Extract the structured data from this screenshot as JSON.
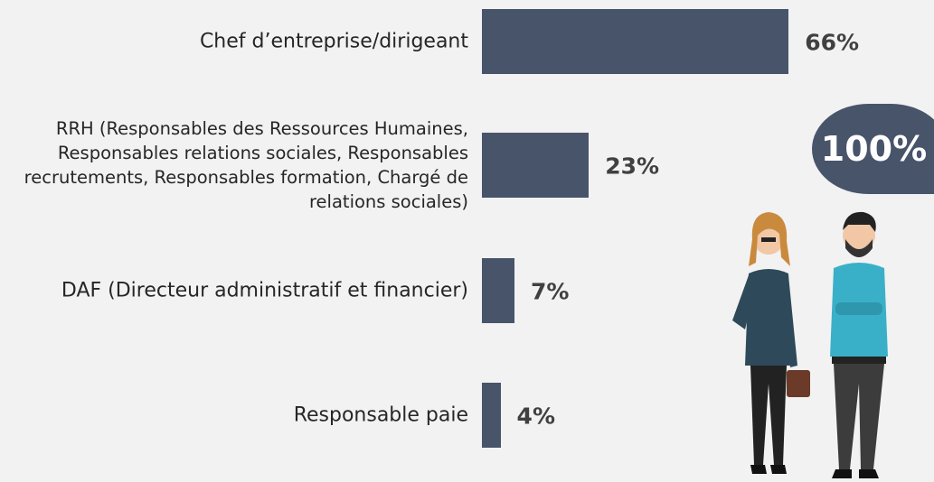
{
  "chart_data": {
    "type": "bar",
    "orientation": "horizontal",
    "color": "#48546a",
    "categories": [
      "Chef d’entreprise/dirigeant",
      "RRH (Responsables des Ressources Humaines, Responsables relations sociales, Responsables recrutements, Responsables formation, Chargé de relations sociales)",
      "DAF (Directeur administratif et financier)",
      "Responsable paie"
    ],
    "values": [
      66,
      23,
      7,
      4
    ],
    "value_labels": [
      "66%",
      "23%",
      "7%",
      "4%"
    ],
    "annotation": "100%"
  }
}
